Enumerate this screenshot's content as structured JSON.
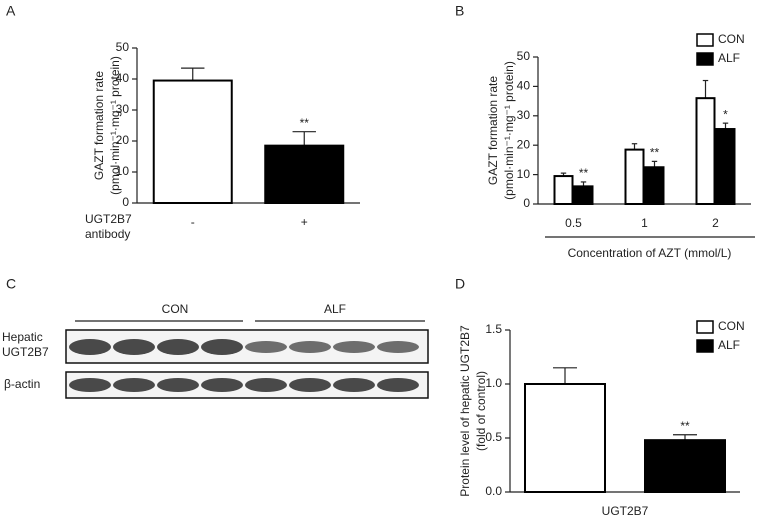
{
  "chart_data": [
    {
      "type": "bar",
      "panel_label": "A",
      "ylabel": [
        "GAZT formation rate",
        "(pmol·min⁻¹·mg⁻¹ protein)"
      ],
      "xlabel": [
        "UGT2B7",
        "antibody"
      ],
      "categories": [
        "-",
        "+"
      ],
      "values": [
        39.5,
        18.5
      ],
      "errors": [
        4,
        4.5
      ],
      "colors": [
        "#ffffff",
        "#000000"
      ],
      "annotations": [
        null,
        "**"
      ],
      "ylim": [
        0,
        50
      ],
      "yticks": [
        0,
        10,
        20,
        30,
        40,
        50
      ]
    },
    {
      "type": "bar",
      "panel_label": "B",
      "ylabel": [
        "GAZT formation rate",
        "(pmol·min⁻¹·mg⁻¹ protein)"
      ],
      "xlabel": "Concentration of AZT (mmol/L)",
      "categories": [
        "0.5",
        "1",
        "2"
      ],
      "series": [
        {
          "name": "CON",
          "color": "#ffffff",
          "values": [
            9.5,
            18.5,
            36
          ],
          "errors": [
            1,
            2,
            6
          ],
          "annotations": [
            null,
            null,
            null
          ]
        },
        {
          "name": "ALF",
          "color": "#000000",
          "values": [
            6,
            12.5,
            25.5
          ],
          "errors": [
            1.5,
            2,
            2
          ],
          "annotations": [
            "**",
            "**",
            "*"
          ]
        }
      ],
      "ylim": [
        0,
        50
      ],
      "yticks": [
        0,
        10,
        20,
        30,
        40,
        50
      ]
    },
    {
      "type": "bar",
      "panel_label": "D",
      "ylabel": [
        "Protein level of hepatic UGT2B7",
        "(fold of control)"
      ],
      "categories": [
        "UGT2B7"
      ],
      "series": [
        {
          "name": "CON",
          "color": "#ffffff",
          "values": [
            1.0
          ],
          "errors": [
            0.15
          ],
          "annotations": [
            null
          ]
        },
        {
          "name": "ALF",
          "color": "#000000",
          "values": [
            0.48
          ],
          "errors": [
            0.05
          ],
          "annotations": [
            "**"
          ]
        }
      ],
      "ylim": [
        0,
        1.5
      ],
      "yticks": [
        {
          "value": 0,
          "label": "0.0"
        },
        {
          "value": 0.5,
          "label": "0.5"
        },
        {
          "value": 1,
          "label": "1.0"
        },
        {
          "value": 1.5,
          "label": "1.5"
        }
      ]
    }
  ],
  "blot": {
    "panel_label": "C",
    "groups": [
      "CON",
      "ALF"
    ],
    "rows": [
      "Hepatic UGT2B7",
      "β-actin"
    ]
  }
}
